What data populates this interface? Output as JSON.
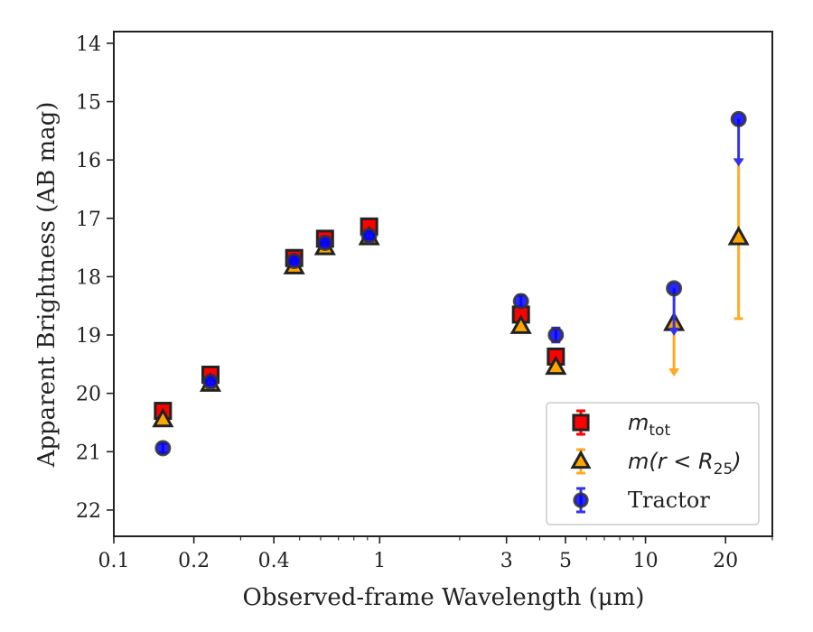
{
  "chart_data": {
    "type": "scatter",
    "xlabel": "Observed-frame Wavelength (μm)",
    "ylabel": "Apparent Brightness (AB mag)",
    "xscale": "log",
    "xlim": [
      0.1,
      30
    ],
    "ylim": [
      22.45,
      13.8
    ],
    "y_inverted": true,
    "x_ticks": [
      {
        "value": 0.1,
        "label": "0.1"
      },
      {
        "value": 0.2,
        "label": "0.2"
      },
      {
        "value": 0.4,
        "label": "0.4"
      },
      {
        "value": 1,
        "label": "1"
      },
      {
        "value": 3,
        "label": "3"
      },
      {
        "value": 5,
        "label": "5"
      },
      {
        "value": 10,
        "label": "10"
      },
      {
        "value": 20,
        "label": "20"
      }
    ],
    "y_ticks": [
      14,
      15,
      16,
      17,
      18,
      19,
      20,
      21,
      22
    ],
    "legend_position": "lower-right",
    "series": [
      {
        "key": "mtot",
        "label_main": "m",
        "label_sub": "tot",
        "marker": "square",
        "color": "#ff0000",
        "edge": "#222222",
        "errcolor": "#ff0000",
        "points": [
          {
            "x": 0.153,
            "y": 20.3,
            "err": 0.05
          },
          {
            "x": 0.231,
            "y": 19.68,
            "err": 0.05
          },
          {
            "x": 0.477,
            "y": 17.68,
            "err": 0.04
          },
          {
            "x": 0.623,
            "y": 17.35,
            "err": 0.04
          },
          {
            "x": 0.913,
            "y": 17.14,
            "err": 0.04
          },
          {
            "x": 3.4,
            "y": 18.65,
            "err": 0.05
          },
          {
            "x": 4.6,
            "y": 19.37,
            "err": 0.06
          }
        ]
      },
      {
        "key": "mr25",
        "label_main": "m(r < R",
        "label_sub": "25",
        "label_tail": ")",
        "marker": "triangle",
        "color": "#ffa500",
        "edge": "#222222",
        "errcolor": "#ffaa22",
        "points": [
          {
            "x": 0.153,
            "y": 20.45,
            "err": 0.04
          },
          {
            "x": 0.231,
            "y": 19.84,
            "err": 0.04
          },
          {
            "x": 0.477,
            "y": 17.83,
            "err": 0.04
          },
          {
            "x": 0.623,
            "y": 17.5,
            "err": 0.04
          },
          {
            "x": 0.913,
            "y": 17.33,
            "err": 0.04
          },
          {
            "x": 3.4,
            "y": 18.85,
            "err": 0.05
          },
          {
            "x": 4.6,
            "y": 19.55,
            "err": 0.05
          },
          {
            "x": 12.8,
            "y": 18.8,
            "upper_limit_to": 19.65
          },
          {
            "x": 22.4,
            "y": 17.33,
            "err_lo": 16.0,
            "err_hi": 18.72
          }
        ]
      },
      {
        "key": "tractor",
        "label_main": "Tractor",
        "marker": "circle",
        "color": "#0000ff",
        "edge": "#333333",
        "errcolor": "#3333ee",
        "points": [
          {
            "x": 0.153,
            "y": 20.94,
            "err": 0.08
          },
          {
            "x": 0.231,
            "y": 19.8,
            "err": 0.05
          },
          {
            "x": 0.477,
            "y": 17.73,
            "err": 0.05
          },
          {
            "x": 0.623,
            "y": 17.42,
            "err": 0.05
          },
          {
            "x": 0.913,
            "y": 17.3,
            "err": 0.05
          },
          {
            "x": 3.4,
            "y": 18.42,
            "err": 0.1
          },
          {
            "x": 4.6,
            "y": 19.0,
            "err": 0.12
          },
          {
            "x": 12.8,
            "y": 18.2,
            "upper_limit_to": 18.95
          },
          {
            "x": 22.4,
            "y": 15.3,
            "upper_limit_to": 16.05
          }
        ]
      }
    ]
  }
}
